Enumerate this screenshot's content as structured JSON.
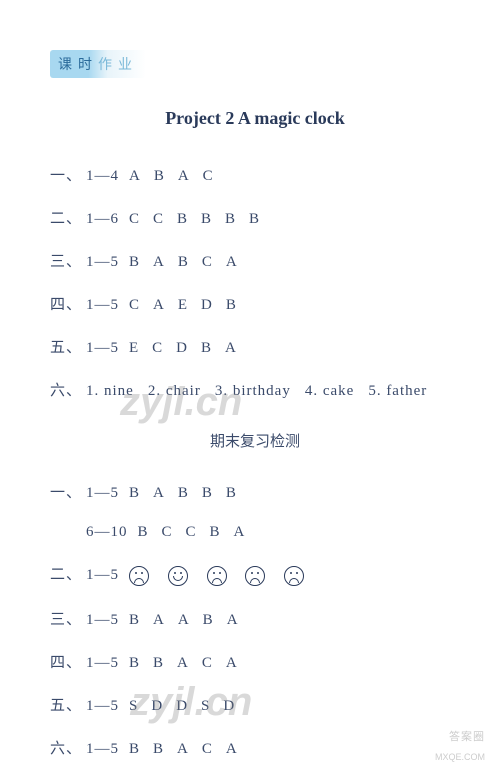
{
  "header": {
    "tag_dark": "课时",
    "tag_light": "作业"
  },
  "title": "Project 2   A magic clock",
  "section1": {
    "lines": [
      {
        "prefix": "一、",
        "range": "1—4",
        "answers": "ABAC"
      },
      {
        "prefix": "二、",
        "range": "1—6",
        "answers": "CCBBBB"
      },
      {
        "prefix": "三、",
        "range": "1—5",
        "answers": "BABCA"
      },
      {
        "prefix": "四、",
        "range": "1—5",
        "answers": "CAEDB"
      },
      {
        "prefix": "五、",
        "range": "1—5",
        "answers": "ECDBA"
      }
    ],
    "line6": {
      "prefix": "六、",
      "items": [
        "1. nine",
        "2. chair",
        "3. birthday",
        "4. cake",
        "5. father"
      ]
    }
  },
  "section2_title": "期末复习检测",
  "section2": {
    "line1a": {
      "prefix": "一、",
      "range": "1—5",
      "answers": "BABBB"
    },
    "line1b": {
      "range": "6—10",
      "answers": "BCCBA"
    },
    "line2": {
      "prefix": "二、",
      "range": "1—5",
      "emojis": [
        "sad",
        "happy",
        "sad",
        "sad",
        "sad"
      ]
    },
    "line3": {
      "prefix": "三、",
      "range": "1—5",
      "answers": "BAABA"
    },
    "line4": {
      "prefix": "四、",
      "range": "1—5",
      "answers": "BBACA"
    },
    "line5": {
      "prefix": "五、",
      "range": "1—5",
      "answers": "SDDSD"
    },
    "line6": {
      "prefix": "六、",
      "range": "1—5",
      "answers": "BBACA"
    }
  },
  "watermarks": {
    "wm": "zyjl.cn",
    "corner_logo": "答案圈",
    "corner_url": "MXQE.COM"
  },
  "colors": {
    "text": "#3a4a6a",
    "title": "#2a3a5a",
    "tag_bg_start": "#a8d8f0",
    "tag_text": "#2a6a9a",
    "background": "#ffffff"
  }
}
